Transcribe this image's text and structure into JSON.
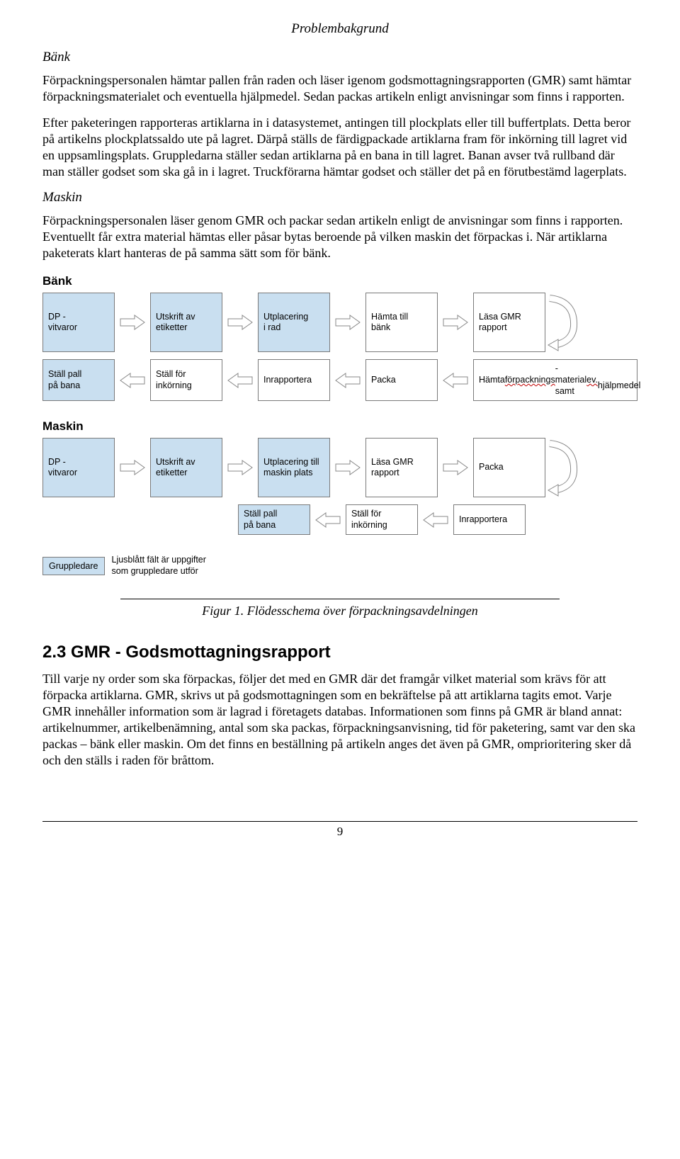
{
  "header": {
    "title": "Problembakgrund"
  },
  "bank": {
    "heading": "Bänk",
    "para1": "Förpackningspersonalen hämtar pallen från raden och läser igenom godsmottagningsrapporten (GMR) samt hämtar förpackningsmaterialet och eventuella hjälpmedel. Sedan packas artikeln enligt anvisningar som finns i rapporten.",
    "para2": "Efter paketeringen rapporteras artiklarna in i datasystemet, antingen till plockplats eller till buffertplats. Detta beror på artikelns plockplatssaldo ute på lagret. Därpå ställs de färdigpackade artiklarna fram för inkörning till lagret vid en uppsamlingsplats. Gruppledarna ställer sedan artiklarna på en bana in till lagret. Banan avser två rullband där man ställer godset som ska gå in i lagret. Truckförarna hämtar godset och ställer det på en förutbestämd lagerplats."
  },
  "maskin": {
    "heading": "Maskin",
    "para1": "Förpackningspersonalen läser genom GMR och packar sedan artikeln enligt de anvisningar som finns i rapporten. Eventuellt får extra material hämtas eller påsar bytas beroende på vilken maskin det förpackas i. När artiklarna paketerats klart hanteras de på samma sätt som för bänk."
  },
  "flow": {
    "bank_title": "Bänk",
    "bank_row1": [
      {
        "txt": "DP -\nvitvaror",
        "blue": true
      },
      {
        "txt": "Utskrift av\netiketter",
        "blue": true
      },
      {
        "txt": "Utplacering\ni rad",
        "blue": true
      },
      {
        "txt": "Hämta till\nbänk",
        "blue": false
      },
      {
        "txt": "Läsa GMR\nrapport",
        "blue": false
      }
    ],
    "bank_row2": [
      {
        "txt": "Ställ pall\npå bana",
        "blue": true
      },
      {
        "txt": "Ställ för\ninkörning",
        "blue": false
      },
      {
        "txt": "Inrapportera",
        "blue": false
      },
      {
        "txt": "Packa",
        "blue": false
      },
      {
        "txt": "Hämta förpacknings-\nmaterial samt ev.\nhjälpmedel",
        "blue": false,
        "wavy": [
          "förpacknings",
          "ev."
        ]
      }
    ],
    "maskin_title": "Maskin",
    "maskin_row1": [
      {
        "txt": "DP -\nvitvaror",
        "blue": true
      },
      {
        "txt": "Utskrift av\netiketter",
        "blue": true
      },
      {
        "txt": "Utplacering till\nmaskin plats",
        "blue": true
      },
      {
        "txt": "Läsa GMR\nrapport",
        "blue": false
      },
      {
        "txt": "Packa",
        "blue": false
      }
    ],
    "maskin_row2": [
      {
        "txt": "Ställ pall\npå bana",
        "blue": true
      },
      {
        "txt": "Ställ för\ninkörning",
        "blue": false
      },
      {
        "txt": "Inrapportera",
        "blue": false
      }
    ],
    "legend_box": "Gruppledare",
    "legend_text": "Ljusblått fält är uppgifter\nsom gruppledare utför"
  },
  "figure_caption": "Figur 1. Flödesschema över förpackningsavdelningen",
  "section2_3": {
    "heading": "2.3 GMR - Godsmottagningsrapport",
    "para1": "Till varje ny order som ska förpackas, följer det med en GMR där det framgår vilket material som krävs för att förpacka artiklarna. GMR, skrivs ut på godsmottagningen som en bekräftelse på att artiklarna tagits emot. Varje GMR innehåller information som är lagrad i företagets databas. Informationen som finns på GMR är bland annat: artikelnummer, artikelbenämning, antal som ska packas, förpackningsanvisning, tid för paketering, samt var den ska packas – bänk eller maskin. Om det finns en beställning på artikeln anges det även på GMR, omprioritering sker då och den ställs i raden för bråttom."
  },
  "page_number": "9",
  "style": {
    "arrow_fill": "#ffffff",
    "arrow_stroke": "#888888",
    "box_border": "#7a7a7a",
    "blue_fill": "#c9dff0"
  }
}
